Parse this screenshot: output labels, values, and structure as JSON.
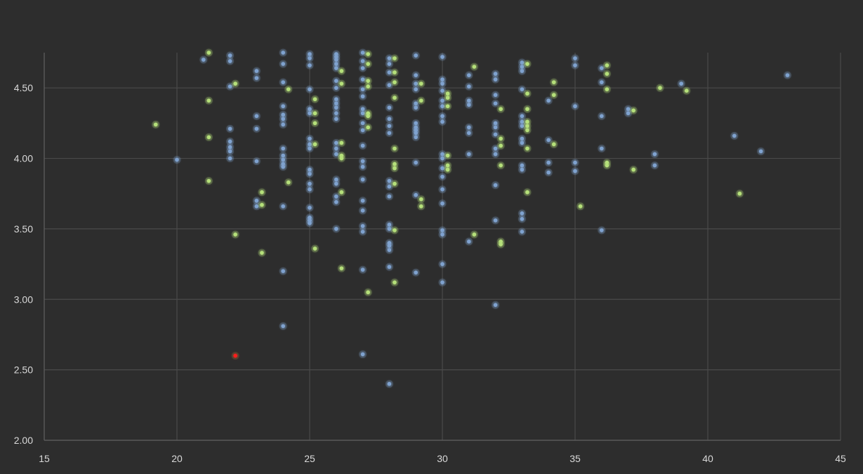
{
  "colors": {
    "background": "#2d2d2d",
    "grid": "#4a4a4a",
    "axis": "#5a5a5a",
    "tick_text": "#d9d9d9",
    "series_blue": "#7fa2cf",
    "series_green": "#b5e07a",
    "highlight_red": "#ff1a1a"
  },
  "chart_data": {
    "type": "scatter",
    "title": "",
    "xlabel": "",
    "ylabel": "",
    "xlim": [
      15,
      45
    ],
    "ylim": [
      2.0,
      4.75
    ],
    "x_ticks": [
      15,
      20,
      25,
      30,
      35,
      40,
      45
    ],
    "y_ticks": [
      2.0,
      2.5,
      3.0,
      3.5,
      4.0,
      4.5
    ],
    "x_tick_labels": [
      "15",
      "20",
      "25",
      "30",
      "35",
      "40",
      "45"
    ],
    "y_tick_labels": [
      "2.00",
      "2.50",
      "3.00",
      "3.50",
      "4.00",
      "4.50"
    ],
    "grid": true,
    "legend": "none",
    "series": [
      {
        "color": "#7fa2cf",
        "points": [
          [
            21,
            4.7
          ],
          [
            20,
            3.99
          ],
          [
            22,
            4.73
          ],
          [
            22,
            4.69
          ],
          [
            22,
            4.51
          ],
          [
            22,
            4.21
          ],
          [
            22,
            4.12
          ],
          [
            22,
            4.08
          ],
          [
            22,
            4.05
          ],
          [
            22,
            4.0
          ],
          [
            23,
            4.62
          ],
          [
            23,
            4.57
          ],
          [
            23,
            4.3
          ],
          [
            23,
            4.21
          ],
          [
            23,
            3.98
          ],
          [
            23,
            3.7
          ],
          [
            23,
            3.66
          ],
          [
            24,
            4.75
          ],
          [
            24,
            4.67
          ],
          [
            24,
            4.54
          ],
          [
            24,
            4.37
          ],
          [
            24,
            4.31
          ],
          [
            24,
            4.28
          ],
          [
            24,
            4.24
          ],
          [
            24,
            4.07
          ],
          [
            24,
            4.02
          ],
          [
            24,
            3.99
          ],
          [
            24,
            3.96
          ],
          [
            24,
            3.94
          ],
          [
            24,
            3.66
          ],
          [
            24,
            3.2
          ],
          [
            24,
            2.81
          ],
          [
            25,
            4.74
          ],
          [
            25,
            4.71
          ],
          [
            25,
            4.66
          ],
          [
            25,
            4.49
          ],
          [
            25,
            4.35
          ],
          [
            25,
            4.32
          ],
          [
            25,
            4.14
          ],
          [
            25,
            4.1
          ],
          [
            25,
            4.07
          ],
          [
            25,
            3.92
          ],
          [
            25,
            3.89
          ],
          [
            25,
            3.82
          ],
          [
            25,
            3.78
          ],
          [
            25,
            3.65
          ],
          [
            25,
            3.58
          ],
          [
            25,
            3.56
          ],
          [
            25,
            3.54
          ],
          [
            26,
            4.74
          ],
          [
            26,
            4.72
          ],
          [
            26,
            4.7
          ],
          [
            26,
            4.67
          ],
          [
            26,
            4.64
          ],
          [
            26,
            4.55
          ],
          [
            26,
            4.5
          ],
          [
            26,
            4.42
          ],
          [
            26,
            4.39
          ],
          [
            26,
            4.36
          ],
          [
            26,
            4.32
          ],
          [
            26,
            4.28
          ],
          [
            26,
            4.11
          ],
          [
            26,
            4.07
          ],
          [
            26,
            4.03
          ],
          [
            26,
            3.85
          ],
          [
            26,
            3.82
          ],
          [
            26,
            3.73
          ],
          [
            26,
            3.69
          ],
          [
            26,
            3.5
          ],
          [
            27,
            4.75
          ],
          [
            27,
            4.69
          ],
          [
            27,
            4.64
          ],
          [
            27,
            4.56
          ],
          [
            27,
            4.49
          ],
          [
            27,
            4.44
          ],
          [
            27,
            4.35
          ],
          [
            27,
            4.32
          ],
          [
            27,
            4.25
          ],
          [
            27,
            4.2
          ],
          [
            27,
            4.09
          ],
          [
            27,
            3.98
          ],
          [
            27,
            3.94
          ],
          [
            27,
            3.85
          ],
          [
            27,
            3.7
          ],
          [
            27,
            3.63
          ],
          [
            27,
            3.52
          ],
          [
            27,
            3.48
          ],
          [
            27,
            3.21
          ],
          [
            27,
            2.61
          ],
          [
            28,
            4.71
          ],
          [
            28,
            4.67
          ],
          [
            28,
            4.61
          ],
          [
            28,
            4.52
          ],
          [
            28,
            4.36
          ],
          [
            28,
            4.28
          ],
          [
            28,
            4.23
          ],
          [
            28,
            4.18
          ],
          [
            28,
            3.84
          ],
          [
            28,
            3.8
          ],
          [
            28,
            3.73
          ],
          [
            28,
            3.53
          ],
          [
            28,
            3.5
          ],
          [
            28,
            3.4
          ],
          [
            28,
            3.38
          ],
          [
            28,
            3.35
          ],
          [
            28,
            3.23
          ],
          [
            28,
            2.4
          ],
          [
            29,
            4.73
          ],
          [
            29,
            4.59
          ],
          [
            29,
            4.53
          ],
          [
            29,
            4.49
          ],
          [
            29,
            4.39
          ],
          [
            29,
            4.36
          ],
          [
            29,
            4.25
          ],
          [
            29,
            4.22
          ],
          [
            29,
            4.2
          ],
          [
            29,
            4.18
          ],
          [
            29,
            4.15
          ],
          [
            29,
            3.97
          ],
          [
            29,
            3.74
          ],
          [
            29,
            3.19
          ],
          [
            30,
            4.72
          ],
          [
            30,
            4.56
          ],
          [
            30,
            4.53
          ],
          [
            30,
            4.48
          ],
          [
            30,
            4.41
          ],
          [
            30,
            4.37
          ],
          [
            30,
            4.3
          ],
          [
            30,
            4.26
          ],
          [
            30,
            4.03
          ],
          [
            30,
            4.0
          ],
          [
            30,
            3.93
          ],
          [
            30,
            3.87
          ],
          [
            30,
            3.78
          ],
          [
            30,
            3.68
          ],
          [
            30,
            3.49
          ],
          [
            30,
            3.46
          ],
          [
            30,
            3.25
          ],
          [
            30,
            3.12
          ],
          [
            31,
            4.59
          ],
          [
            31,
            4.51
          ],
          [
            31,
            4.41
          ],
          [
            31,
            4.38
          ],
          [
            31,
            4.22
          ],
          [
            31,
            4.18
          ],
          [
            31,
            4.03
          ],
          [
            31,
            3.41
          ],
          [
            32,
            4.6
          ],
          [
            32,
            4.56
          ],
          [
            32,
            4.45
          ],
          [
            32,
            4.39
          ],
          [
            32,
            4.25
          ],
          [
            32,
            4.22
          ],
          [
            32,
            4.17
          ],
          [
            32,
            4.07
          ],
          [
            32,
            4.03
          ],
          [
            32,
            3.81
          ],
          [
            32,
            3.56
          ],
          [
            32,
            2.96
          ],
          [
            33,
            4.68
          ],
          [
            33,
            4.65
          ],
          [
            33,
            4.62
          ],
          [
            33,
            4.49
          ],
          [
            33,
            4.3
          ],
          [
            33,
            4.26
          ],
          [
            33,
            4.23
          ],
          [
            33,
            4.14
          ],
          [
            33,
            4.11
          ],
          [
            33,
            3.95
          ],
          [
            33,
            3.92
          ],
          [
            33,
            3.61
          ],
          [
            33,
            3.57
          ],
          [
            33,
            3.48
          ],
          [
            34,
            4.41
          ],
          [
            34,
            4.13
          ],
          [
            34,
            3.97
          ],
          [
            34,
            3.9
          ],
          [
            35,
            4.71
          ],
          [
            35,
            4.66
          ],
          [
            35,
            4.37
          ],
          [
            35,
            3.97
          ],
          [
            35,
            3.91
          ],
          [
            36,
            4.64
          ],
          [
            36,
            4.54
          ],
          [
            36,
            4.3
          ],
          [
            36,
            4.07
          ],
          [
            36,
            3.49
          ],
          [
            37,
            4.35
          ],
          [
            37,
            4.32
          ],
          [
            38,
            4.03
          ],
          [
            38,
            3.95
          ],
          [
            39,
            4.53
          ],
          [
            41,
            4.16
          ],
          [
            42,
            4.05
          ],
          [
            43,
            4.59
          ]
        ]
      },
      {
        "color": "#b5e07a",
        "points": [
          [
            19.2,
            4.24
          ],
          [
            21.2,
            4.75
          ],
          [
            21.2,
            4.41
          ],
          [
            21.2,
            4.15
          ],
          [
            21.2,
            3.84
          ],
          [
            22.2,
            4.53
          ],
          [
            22.2,
            3.46
          ],
          [
            23.2,
            3.76
          ],
          [
            23.2,
            3.67
          ],
          [
            23.2,
            3.33
          ],
          [
            24.2,
            4.49
          ],
          [
            24.2,
            3.83
          ],
          [
            25.2,
            4.42
          ],
          [
            25.2,
            4.32
          ],
          [
            25.2,
            4.25
          ],
          [
            25.2,
            4.1
          ],
          [
            25.2,
            3.36
          ],
          [
            26.2,
            4.62
          ],
          [
            26.2,
            4.53
          ],
          [
            26.2,
            4.11
          ],
          [
            26.2,
            4.02
          ],
          [
            26.2,
            4.0
          ],
          [
            26.2,
            3.76
          ],
          [
            26.2,
            3.22
          ],
          [
            27.2,
            4.74
          ],
          [
            27.2,
            4.67
          ],
          [
            27.2,
            4.55
          ],
          [
            27.2,
            4.51
          ],
          [
            27.2,
            4.32
          ],
          [
            27.2,
            4.3
          ],
          [
            27.2,
            4.22
          ],
          [
            27.2,
            3.05
          ],
          [
            28.2,
            4.71
          ],
          [
            28.2,
            4.61
          ],
          [
            28.2,
            4.54
          ],
          [
            28.2,
            4.43
          ],
          [
            28.2,
            4.07
          ],
          [
            28.2,
            3.96
          ],
          [
            28.2,
            3.93
          ],
          [
            28.2,
            3.82
          ],
          [
            28.2,
            3.49
          ],
          [
            28.2,
            3.12
          ],
          [
            29.2,
            4.53
          ],
          [
            29.2,
            4.41
          ],
          [
            29.2,
            3.71
          ],
          [
            29.2,
            3.66
          ],
          [
            30.2,
            4.46
          ],
          [
            30.2,
            4.43
          ],
          [
            30.2,
            4.37
          ],
          [
            30.2,
            4.02
          ],
          [
            30.2,
            3.95
          ],
          [
            30.2,
            3.92
          ],
          [
            31.2,
            4.65
          ],
          [
            31.2,
            3.46
          ],
          [
            32.2,
            4.35
          ],
          [
            32.2,
            4.14
          ],
          [
            32.2,
            4.09
          ],
          [
            32.2,
            3.95
          ],
          [
            32.2,
            3.41
          ],
          [
            32.2,
            3.39
          ],
          [
            33.2,
            4.67
          ],
          [
            33.2,
            4.46
          ],
          [
            33.2,
            4.35
          ],
          [
            33.2,
            4.26
          ],
          [
            33.2,
            4.23
          ],
          [
            33.2,
            4.2
          ],
          [
            33.2,
            4.07
          ],
          [
            33.2,
            3.76
          ],
          [
            34.2,
            4.54
          ],
          [
            34.2,
            4.45
          ],
          [
            34.2,
            4.1
          ],
          [
            35.2,
            3.66
          ],
          [
            36.2,
            4.66
          ],
          [
            36.2,
            4.6
          ],
          [
            36.2,
            4.49
          ],
          [
            36.2,
            3.97
          ],
          [
            36.2,
            3.95
          ],
          [
            37.2,
            4.34
          ],
          [
            37.2,
            3.92
          ],
          [
            38.2,
            4.5
          ],
          [
            39.2,
            4.48
          ],
          [
            41.2,
            3.75
          ]
        ]
      },
      {
        "color": "#ff1a1a",
        "points": [
          [
            22.2,
            2.6
          ]
        ]
      }
    ]
  }
}
